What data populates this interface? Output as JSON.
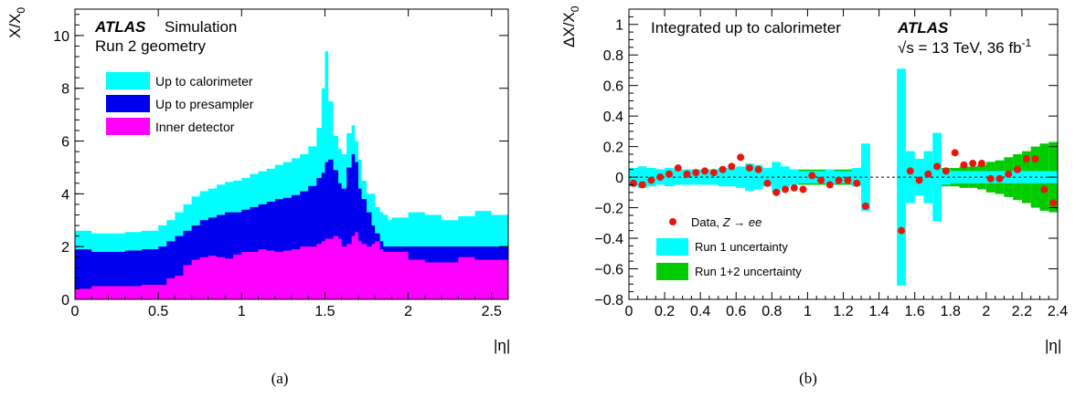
{
  "chart_data": [
    {
      "type": "area",
      "panel_caption": "(a)",
      "ylabel": "X/X",
      "ylabel_sub": "0",
      "xlabel": "|η|",
      "xlim": [
        0,
        2.6
      ],
      "ylim": [
        0,
        11
      ],
      "xticks": [
        "0",
        "0.5",
        "1",
        "1.5",
        "2",
        "2.5"
      ],
      "xtick_values": [
        0,
        0.5,
        1,
        1.5,
        2,
        2.5
      ],
      "yticks": [
        "0",
        "2",
        "4",
        "6",
        "8",
        "10"
      ],
      "ytick_values": [
        0,
        2,
        4,
        6,
        8,
        10
      ],
      "atlas_label": "ATLAS",
      "atlas_suffix": "Simulation",
      "subtitle": "Run 2 geometry",
      "legend_placement": "top-left",
      "x": [
        0.0,
        0.1,
        0.2,
        0.3,
        0.4,
        0.5,
        0.55,
        0.6,
        0.65,
        0.7,
        0.75,
        0.8,
        0.85,
        0.9,
        0.95,
        1.0,
        1.05,
        1.1,
        1.15,
        1.2,
        1.25,
        1.3,
        1.35,
        1.4,
        1.45,
        1.48,
        1.5,
        1.52,
        1.55,
        1.58,
        1.6,
        1.63,
        1.66,
        1.68,
        1.7,
        1.72,
        1.75,
        1.78,
        1.8,
        1.83,
        1.85,
        1.88,
        1.9,
        2.0,
        2.1,
        2.2,
        2.3,
        2.4,
        2.5,
        2.6
      ],
      "series": [
        {
          "name": "Up to calorimeter",
          "color": "#00ffff",
          "values": [
            2.6,
            2.5,
            2.5,
            2.55,
            2.6,
            2.8,
            3.0,
            3.3,
            3.6,
            3.9,
            4.1,
            4.2,
            4.35,
            4.45,
            4.5,
            4.6,
            4.75,
            4.85,
            4.95,
            5.1,
            5.2,
            5.35,
            5.5,
            5.8,
            6.5,
            8.0,
            9.4,
            7.5,
            6.2,
            5.7,
            5.5,
            6.3,
            6.6,
            6.0,
            5.3,
            4.5,
            4.0,
            4.0,
            3.5,
            3.3,
            3.2,
            3.0,
            3.1,
            3.3,
            3.2,
            3.0,
            3.15,
            3.35,
            3.2,
            2.9
          ]
        },
        {
          "name": "Up to presampler",
          "color": "#0000ee",
          "values": [
            1.9,
            1.8,
            1.8,
            1.85,
            1.9,
            2.0,
            2.2,
            2.4,
            2.6,
            2.8,
            3.0,
            3.1,
            3.2,
            3.3,
            3.3,
            3.4,
            3.5,
            3.6,
            3.7,
            3.8,
            3.85,
            3.95,
            4.1,
            4.3,
            4.6,
            4.8,
            5.2,
            5.3,
            4.9,
            4.4,
            4.2,
            5.0,
            5.5,
            5.2,
            4.2,
            3.8,
            3.3,
            2.8,
            2.5,
            2.2,
            2.0,
            2.0,
            2.0,
            2.0,
            2.0,
            2.0,
            2.0,
            2.0,
            2.0,
            2.0
          ]
        },
        {
          "name": "Inner detector",
          "color": "#ff00ff",
          "values": [
            0.4,
            0.5,
            0.5,
            0.5,
            0.55,
            0.55,
            0.8,
            0.9,
            1.3,
            1.5,
            1.6,
            1.65,
            1.6,
            1.55,
            1.7,
            1.8,
            1.8,
            1.9,
            1.85,
            1.8,
            1.85,
            1.9,
            2.0,
            2.0,
            2.1,
            2.2,
            2.3,
            2.3,
            2.4,
            2.3,
            2.0,
            2.1,
            2.4,
            2.55,
            2.2,
            2.1,
            2.0,
            2.1,
            2.2,
            1.9,
            1.8,
            1.8,
            1.8,
            1.5,
            1.4,
            1.4,
            1.6,
            1.5,
            1.5,
            1.4
          ]
        }
      ]
    },
    {
      "type": "scatter",
      "panel_caption": "(b)",
      "ylabel": "ΔX/X",
      "ylabel_sub": "0",
      "xlabel": "|η|",
      "xlim": [
        0,
        2.4
      ],
      "ylim": [
        -0.8,
        1.1
      ],
      "xticks": [
        "0",
        "0.2",
        "0.4",
        "0.6",
        "0.8",
        "1",
        "1.2",
        "1.4",
        "1.6",
        "1.8",
        "2",
        "2.2",
        "2.4"
      ],
      "xtick_values": [
        0,
        0.2,
        0.4,
        0.6,
        0.8,
        1.0,
        1.2,
        1.4,
        1.6,
        1.8,
        2.0,
        2.2,
        2.4
      ],
      "yticks": [
        "−0.8",
        "−0.6",
        "−0.4",
        "−0.2",
        "0",
        "0.2",
        "0.4",
        "0.6",
        "0.8",
        "1"
      ],
      "ytick_values": [
        -0.8,
        -0.6,
        -0.4,
        -0.2,
        0,
        0.2,
        0.4,
        0.6,
        0.8,
        1.0
      ],
      "title": "Integrated up to calorimeter",
      "atlas_label": "ATLAS",
      "energy_label": "√s = 13 TeV, 36 fb",
      "energy_sup": "-1",
      "legend_placement": "bottom-left",
      "legend": [
        {
          "label": "Data, ",
          "label_italic": "Z",
          "label_arrow": " → ",
          "label_tail": "ee",
          "kind": "marker",
          "color": "#e8160c"
        },
        {
          "label": "Run 1 uncertainty",
          "kind": "box",
          "color": "#00ffff"
        },
        {
          "label": "Run 1+2 uncertainty",
          "kind": "box",
          "color": "#00cc00"
        }
      ],
      "reference_line": 0,
      "band_run12": {
        "x": [
          0.0,
          0.05,
          0.1,
          0.15,
          0.2,
          0.25,
          0.3,
          0.35,
          0.4,
          0.45,
          0.5,
          0.55,
          0.6,
          0.65,
          0.7,
          0.75,
          0.8,
          0.85,
          0.9,
          0.95,
          1.0,
          1.05,
          1.1,
          1.15,
          1.2,
          1.25,
          1.3,
          1.35,
          1.5,
          1.55,
          1.6,
          1.65,
          1.7,
          1.75,
          1.8,
          1.85,
          1.9,
          1.95,
          2.0,
          2.05,
          2.1,
          2.15,
          2.2,
          2.25,
          2.3,
          2.35,
          2.4
        ],
        "half_width": [
          0.06,
          0.07,
          0.06,
          0.05,
          0.05,
          0.05,
          0.05,
          0.05,
          0.05,
          0.05,
          0.05,
          0.05,
          0.05,
          0.05,
          0.05,
          0.05,
          0.05,
          0.05,
          0.05,
          0.05,
          0.05,
          0.05,
          0.05,
          0.05,
          0.05,
          0.05,
          0.05,
          0.05,
          0.06,
          0.06,
          0.06,
          0.06,
          0.06,
          0.06,
          0.06,
          0.07,
          0.07,
          0.08,
          0.1,
          0.11,
          0.13,
          0.15,
          0.17,
          0.2,
          0.22,
          0.23,
          0.23
        ]
      },
      "band_run1": {
        "x": [
          0.0,
          0.05,
          0.1,
          0.15,
          0.2,
          0.25,
          0.3,
          0.35,
          0.4,
          0.45,
          0.5,
          0.55,
          0.6,
          0.65,
          0.7,
          0.75,
          0.8,
          0.85,
          0.9,
          0.95,
          1.0,
          1.05,
          1.1,
          1.15,
          1.2,
          1.25,
          1.3,
          1.35,
          1.5,
          1.55,
          1.6,
          1.65,
          1.7,
          1.75,
          1.8,
          1.85,
          1.9,
          1.95,
          2.0,
          2.05,
          2.1,
          2.15,
          2.2,
          2.25,
          2.3,
          2.35,
          2.4
        ],
        "half_width": [
          0.06,
          0.07,
          0.06,
          0.05,
          0.06,
          0.05,
          0.05,
          0.05,
          0.05,
          0.05,
          0.06,
          0.06,
          0.07,
          0.09,
          0.08,
          0.06,
          0.1,
          0.07,
          0.05,
          0.04,
          0.04,
          0.04,
          0.05,
          0.04,
          0.04,
          0.06,
          0.22,
          0.22,
          0.71,
          0.17,
          0.12,
          0.17,
          0.29,
          0.05,
          0.04,
          0.04,
          0.04,
          0.04,
          0.04,
          0.04,
          0.04,
          0.04,
          0.04,
          0.04,
          0.04,
          0.04,
          0.04
        ]
      },
      "data_points": {
        "x": [
          0.025,
          0.075,
          0.125,
          0.175,
          0.225,
          0.275,
          0.325,
          0.375,
          0.425,
          0.475,
          0.525,
          0.575,
          0.625,
          0.675,
          0.725,
          0.775,
          0.825,
          0.875,
          0.925,
          0.975,
          1.025,
          1.075,
          1.125,
          1.175,
          1.225,
          1.275,
          1.325,
          1.525,
          1.575,
          1.625,
          1.675,
          1.725,
          1.775,
          1.825,
          1.875,
          1.925,
          1.975,
          2.025,
          2.075,
          2.125,
          2.175,
          2.225,
          2.275,
          2.325,
          2.375
        ],
        "y": [
          -0.04,
          -0.05,
          -0.02,
          0.0,
          0.02,
          0.06,
          0.02,
          0.03,
          0.04,
          0.03,
          0.05,
          0.07,
          0.13,
          0.06,
          0.05,
          -0.04,
          -0.1,
          -0.08,
          -0.07,
          -0.08,
          0.01,
          -0.02,
          -0.05,
          -0.02,
          -0.02,
          -0.04,
          -0.19,
          -0.35,
          0.04,
          -0.02,
          0.02,
          0.07,
          0.04,
          0.16,
          0.08,
          0.09,
          0.09,
          -0.01,
          -0.01,
          0.02,
          0.05,
          0.12,
          0.12,
          -0.08,
          -0.17
        ]
      }
    }
  ]
}
